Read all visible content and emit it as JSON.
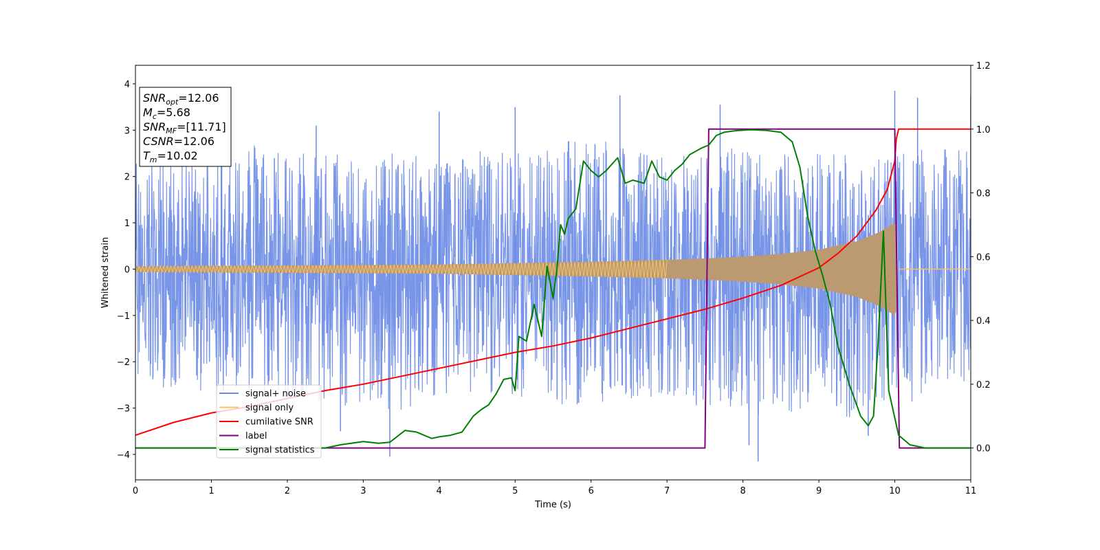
{
  "chart_data": {
    "type": "line",
    "xlabel": "Time (s)",
    "ylabel": "Whitened strain",
    "xlim": [
      0,
      11
    ],
    "ylim": [
      -4.55,
      4.4
    ],
    "y2lim": [
      -0.1,
      1.2
    ],
    "x_ticks": [
      0,
      1,
      2,
      3,
      4,
      5,
      6,
      7,
      8,
      9,
      10,
      11
    ],
    "y_ticks": [
      -4,
      -3,
      -2,
      -1,
      0,
      1,
      2,
      3,
      4
    ],
    "y2_ticks": [
      0.0,
      0.2,
      0.4,
      0.6,
      0.8,
      1.0,
      1.2
    ],
    "grid": false,
    "legend_position": "lower-left",
    "info_box": {
      "lines": [
        {
          "main": "SNR",
          "sub": "opt",
          "rest": "=12.06"
        },
        {
          "main": "M",
          "sub": "c",
          "rest": "=5.68"
        },
        {
          "main": "SNR",
          "sub": "MF",
          "rest": "=[11.71]"
        },
        {
          "main": "CSNR",
          "sub": "",
          "rest": "=12.06"
        },
        {
          "main": "T",
          "sub": "m",
          "rest": "=10.02"
        }
      ]
    },
    "noise_envelope": {
      "x": [
        0,
        0.5,
        1,
        1.5,
        2,
        2.5,
        3,
        3.5,
        4,
        4.5,
        5,
        5.5,
        6,
        6.5,
        7,
        7.5,
        8,
        8.5,
        9,
        9.5,
        10,
        10.5,
        11
      ],
      "upper": [
        2.4,
        2.45,
        2.5,
        2.8,
        2.6,
        2.55,
        2.5,
        2.5,
        2.4,
        2.6,
        2.5,
        2.7,
        3.1,
        2.6,
        2.45,
        2.5,
        2.7,
        2.5,
        2.6,
        2.55,
        2.5,
        2.6,
        2.6
      ],
      "lower": [
        -2.5,
        -2.6,
        -2.7,
        -2.9,
        -2.8,
        -2.9,
        -3.0,
        -3.1,
        -2.85,
        -2.7,
        -2.75,
        -3.0,
        -2.9,
        -2.8,
        -2.8,
        -3.0,
        -3.1,
        -3.2,
        -2.95,
        -3.3,
        -3.1,
        -2.7,
        -2.6
      ],
      "band_upper": 1.3,
      "band_lower": -1.4,
      "spikes": [
        {
          "x": 1.13,
          "y": 2.95
        },
        {
          "x": 2.38,
          "y": 3.1
        },
        {
          "x": 3.35,
          "y": -4.05
        },
        {
          "x": 5.0,
          "y": 3.5
        },
        {
          "x": 6.38,
          "y": 3.75
        },
        {
          "x": 7.7,
          "y": 3.55
        },
        {
          "x": 8.2,
          "y": -4.15
        },
        {
          "x": 8.08,
          "y": -3.8
        },
        {
          "x": 9.65,
          "y": -3.6
        },
        {
          "x": 10.0,
          "y": 3.85
        },
        {
          "x": 10.3,
          "y": 3.7
        },
        {
          "x": 11.0,
          "y": 3.75
        },
        {
          "x": 4.0,
          "y": 3.4
        },
        {
          "x": 2.7,
          "y": -3.5
        }
      ]
    },
    "series": [
      {
        "name": "signal+ noise",
        "color": "#6a8ae6",
        "axis": "left"
      },
      {
        "name": "signal only",
        "color": "#f5c26b",
        "axis": "left",
        "amplitude": {
          "x": [
            0,
            1,
            2,
            3,
            4,
            5,
            6,
            7,
            7.5,
            8,
            8.5,
            9,
            9.5,
            9.8,
            10.0,
            10.02
          ],
          "a": [
            0.06,
            0.07,
            0.08,
            0.09,
            0.1,
            0.13,
            0.16,
            0.2,
            0.23,
            0.27,
            0.33,
            0.42,
            0.6,
            0.8,
            1.0,
            0.9
          ]
        },
        "fill_color": "#bb9a72"
      },
      {
        "name": "cumilative SNR",
        "color": "#ff0000",
        "axis": "right",
        "x": [
          0,
          0.5,
          1,
          1.5,
          2,
          2.5,
          3,
          3.5,
          4,
          4.5,
          5,
          5.5,
          6,
          6.5,
          7,
          7.5,
          8,
          8.5,
          9,
          9.25,
          9.5,
          9.75,
          9.9,
          10.0,
          10.02,
          10.05,
          11
        ],
        "y": [
          0.04,
          0.08,
          0.11,
          0.13,
          0.155,
          0.18,
          0.2,
          0.225,
          0.25,
          0.275,
          0.3,
          0.32,
          0.345,
          0.375,
          0.405,
          0.435,
          0.47,
          0.51,
          0.565,
          0.61,
          0.665,
          0.745,
          0.81,
          0.9,
          0.97,
          1.0,
          1.0
        ]
      },
      {
        "name": "label",
        "color": "#800080",
        "axis": "right",
        "x": [
          0,
          7.5,
          7.55,
          10.0,
          10.06,
          11
        ],
        "y": [
          0,
          0,
          1,
          1,
          0,
          0
        ]
      },
      {
        "name": "signal statistics",
        "color": "#008000",
        "axis": "right",
        "x": [
          0,
          0.5,
          1,
          1.5,
          2,
          2.5,
          2.7,
          3.0,
          3.2,
          3.35,
          3.55,
          3.7,
          3.9,
          4.0,
          4.15,
          4.3,
          4.45,
          4.55,
          4.65,
          4.75,
          4.85,
          4.95,
          5.0,
          5.05,
          5.15,
          5.25,
          5.35,
          5.42,
          5.5,
          5.55,
          5.6,
          5.65,
          5.7,
          5.8,
          5.9,
          6.0,
          6.1,
          6.2,
          6.35,
          6.45,
          6.55,
          6.7,
          6.8,
          6.9,
          7.0,
          7.1,
          7.2,
          7.3,
          7.45,
          7.55,
          7.65,
          7.75,
          7.9,
          8.1,
          8.3,
          8.5,
          8.65,
          8.75,
          8.85,
          8.95,
          9.05,
          9.15,
          9.25,
          9.4,
          9.55,
          9.65,
          9.72,
          9.78,
          9.85,
          9.92,
          10.05,
          10.2,
          10.4,
          11
        ],
        "y": [
          0.0,
          0.0,
          0.0,
          0.0,
          0.0,
          0.0,
          0.01,
          0.02,
          0.015,
          0.018,
          0.055,
          0.05,
          0.03,
          0.035,
          0.04,
          0.05,
          0.1,
          0.12,
          0.135,
          0.17,
          0.215,
          0.22,
          0.18,
          0.35,
          0.335,
          0.45,
          0.35,
          0.57,
          0.47,
          0.56,
          0.7,
          0.67,
          0.72,
          0.75,
          0.9,
          0.87,
          0.85,
          0.87,
          0.91,
          0.83,
          0.84,
          0.83,
          0.9,
          0.85,
          0.84,
          0.87,
          0.89,
          0.92,
          0.94,
          0.95,
          0.98,
          0.99,
          0.995,
          0.998,
          0.996,
          0.99,
          0.96,
          0.88,
          0.73,
          0.62,
          0.54,
          0.45,
          0.32,
          0.2,
          0.1,
          0.07,
          0.1,
          0.33,
          0.68,
          0.18,
          0.04,
          0.01,
          0.0,
          0.0
        ]
      }
    ]
  }
}
